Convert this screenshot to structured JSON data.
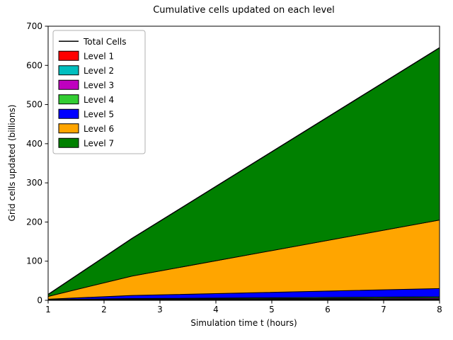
{
  "title": "Cumulative cells updated on each level",
  "xlabel": "Simulation time t (hours)",
  "ylabel": "Grid cells updated (billions)",
  "chart_data": {
    "type": "area",
    "stacked": true,
    "title": "Cumulative cells updated on each level",
    "xlabel": "Simulation time t (hours)",
    "ylabel": "Grid cells updated (billions)",
    "x": [
      1,
      2.5,
      8
    ],
    "series": [
      {
        "name": "Level 1",
        "color": "#ff0000",
        "values": [
          0.3,
          0.8,
          1.5
        ]
      },
      {
        "name": "Level 2",
        "color": "#00bfbf",
        "values": [
          0.4,
          1.0,
          2.0
        ]
      },
      {
        "name": "Level 3",
        "color": "#bf00bf",
        "values": [
          0.5,
          1.2,
          2.5
        ]
      },
      {
        "name": "Level 4",
        "color": "#32cd32",
        "values": [
          0.8,
          1.5,
          3.0
        ]
      },
      {
        "name": "Level 5",
        "color": "#0000ff",
        "values": [
          1.0,
          8.0,
          21.0
        ]
      },
      {
        "name": "Level 6",
        "color": "#ffa500",
        "values": [
          7.0,
          49.5,
          175.0
        ]
      },
      {
        "name": "Level 7",
        "color": "#008000",
        "values": [
          5.0,
          96.0,
          440.0
        ]
      }
    ],
    "total_line": {
      "name": "Total Cells",
      "color": "#000000",
      "values_cumulative_total": [
        15,
        158,
        645
      ]
    },
    "xlim": [
      1,
      8
    ],
    "ylim": [
      0,
      700
    ],
    "xticks": [
      "1",
      "2",
      "3",
      "4",
      "5",
      "6",
      "7",
      "8"
    ],
    "yticks": [
      "0",
      "100",
      "200",
      "300",
      "400",
      "500",
      "600",
      "700"
    ],
    "grid": false,
    "legend_position": "upper left"
  },
  "legend": {
    "entries": [
      {
        "label": "Total Cells",
        "type": "line",
        "color": "#000000"
      },
      {
        "label": "Level 1",
        "type": "patch",
        "color": "#ff0000"
      },
      {
        "label": "Level 2",
        "type": "patch",
        "color": "#00bfbf"
      },
      {
        "label": "Level 3",
        "type": "patch",
        "color": "#bf00bf"
      },
      {
        "label": "Level 4",
        "type": "patch",
        "color": "#32cd32"
      },
      {
        "label": "Level 5",
        "type": "patch",
        "color": "#0000ff"
      },
      {
        "label": "Level 6",
        "type": "patch",
        "color": "#ffa500"
      },
      {
        "label": "Level 7",
        "type": "patch",
        "color": "#008000"
      }
    ]
  }
}
